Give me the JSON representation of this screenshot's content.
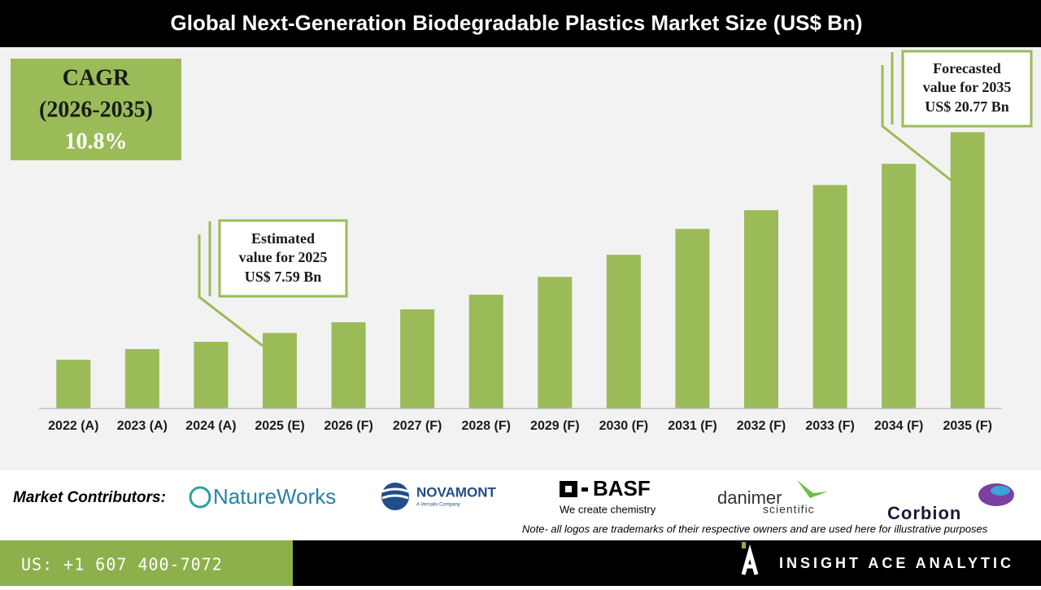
{
  "chart_data": {
    "type": "bar",
    "title": "Global Next-Generation Biodegradable Plastics Market Size (US$ Bn)",
    "categories": [
      "2022 (A)",
      "2023 (A)",
      "2024 (A)",
      "2025 (E)",
      "2026 (F)",
      "2027 (F)",
      "2028 (F)",
      "2029 (F)",
      "2030 (F)",
      "2031 (F)",
      "2032 (F)",
      "2033 (F)",
      "2034 (F)",
      "2035 (F)"
    ],
    "values": [
      5.83,
      6.53,
      7.01,
      7.59,
      8.29,
      9.14,
      10.1,
      11.27,
      12.72,
      14.42,
      15.65,
      17.3,
      18.69,
      20.77
    ],
    "color": "#9bbb59",
    "ylim": [
      2.63,
      22.5
    ],
    "cagr": {
      "lines": [
        "CAGR",
        "(2026-2035)",
        "10.8%"
      ]
    },
    "annotations": [
      {
        "lines": [
          "Estimated",
          "value for 2025",
          "US$ 7.59 Bn"
        ]
      },
      {
        "lines": [
          "Forecasted",
          "value for 2035",
          "US$ 20.77 Bn"
        ]
      }
    ]
  },
  "contributors": {
    "label": "Market Contributors:",
    "logos": [
      "NatureWorks",
      "NOVAMONT",
      "A Versalis Company",
      "BASF",
      "We create chemistry",
      "danimer",
      "scientific",
      "Corbion"
    ],
    "note": "Note- all logos are trademarks of their respective owners and are used here for illustrative purposes"
  },
  "footer": {
    "phone": "US: +1 607 400-7072",
    "company": "INSIGHT ACE ANALYTIC"
  }
}
